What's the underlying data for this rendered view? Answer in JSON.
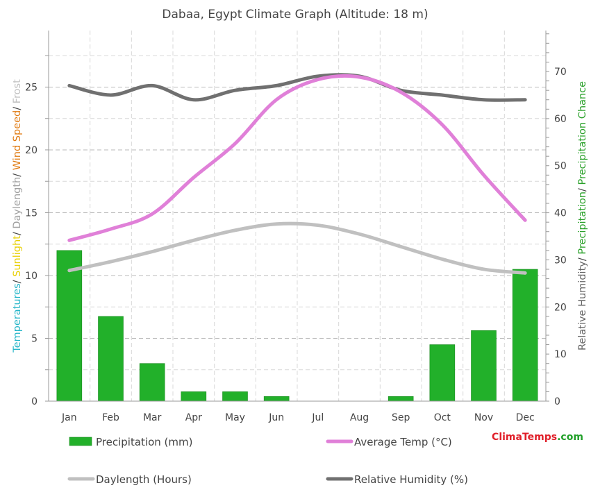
{
  "chart_data": {
    "type": "bar+line",
    "title": "Dabaa, Egypt Climate Graph (Altitude: 18 m)",
    "categories": [
      "Jan",
      "Feb",
      "Mar",
      "Apr",
      "May",
      "Jun",
      "Jul",
      "Aug",
      "Sep",
      "Oct",
      "Nov",
      "Dec"
    ],
    "left_axis": {
      "ylim": [
        0,
        29.5
      ],
      "ticks": [
        "0",
        "5",
        "10",
        "15",
        "20",
        "25"
      ],
      "label_parts": [
        {
          "text": "Temperatures",
          "color": "#22b5c8"
        },
        {
          "text": "/ ",
          "color": "#444444"
        },
        {
          "text": "Sunlight",
          "color": "#e8d000"
        },
        {
          "text": "/ ",
          "color": "#444444"
        },
        {
          "text": "Daylength",
          "color": "#a0a0a0"
        },
        {
          "text": "/ ",
          "color": "#444444"
        },
        {
          "text": "Wind Speed",
          "color": "#e07a10"
        },
        {
          "text": "/ ",
          "color": "#444444"
        },
        {
          "text": "Frost",
          "color": "#c0c0c0"
        }
      ]
    },
    "right_axis": {
      "ylim": [
        0,
        78.7
      ],
      "ticks": [
        "0",
        "10",
        "20",
        "30",
        "40",
        "50",
        "60",
        "70"
      ],
      "label_parts": [
        {
          "text": "Relative Humidity",
          "color": "#666666"
        },
        {
          "text": "/ ",
          "color": "#444444"
        },
        {
          "text": "Precipitation",
          "color": "#2aa12a"
        },
        {
          "text": "/ ",
          "color": "#444444"
        },
        {
          "text": "Precipitation Chance",
          "color": "#2aa12a"
        }
      ]
    },
    "series": [
      {
        "name": "Precipitation (mm)",
        "type": "bar",
        "axis": "right",
        "color": "#22b02a",
        "values": [
          32,
          18,
          8,
          2,
          2,
          1,
          0,
          0,
          1,
          12,
          15,
          28
        ]
      },
      {
        "name": "Average Temp (°C)",
        "type": "line",
        "axis": "left",
        "color": "#e080d8",
        "values": [
          12.8,
          13.7,
          14.9,
          17.8,
          20.5,
          24.0,
          25.6,
          25.8,
          24.6,
          22.0,
          18.0,
          14.4
        ]
      },
      {
        "name": "Daylength (Hours)",
        "type": "line",
        "axis": "left",
        "color": "#c0c0c0",
        "values": [
          10.4,
          11.1,
          11.9,
          12.8,
          13.6,
          14.1,
          14.0,
          13.3,
          12.3,
          11.3,
          10.5,
          10.2
        ]
      },
      {
        "name": "Relative Humidity (%)",
        "type": "line",
        "axis": "right",
        "color": "#707070",
        "values": [
          67,
          65,
          67,
          64,
          66,
          67,
          69,
          69,
          66,
          65,
          64,
          64
        ]
      }
    ],
    "grid": true,
    "legend_position": "bottom",
    "brand": [
      {
        "text": "Clima",
        "color": "#e0202a"
      },
      {
        "text": "Temps",
        "color": "#e0202a"
      },
      {
        "text": ".com",
        "color": "#22a02a"
      }
    ]
  }
}
